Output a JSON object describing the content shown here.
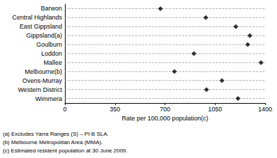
{
  "chart_data": {
    "type": "scatter",
    "orientation": "horizontal",
    "categories": [
      "Barwon",
      "Central Highlands",
      "East Gippsland",
      "Gippsland(a)",
      "Goulburn",
      "Loddon",
      "Mallee",
      "Melbourne(b)",
      "Ovens-Murray",
      "Western District",
      "Wimmera"
    ],
    "values": [
      668,
      985,
      1195,
      1293,
      1278,
      902,
      1371,
      766,
      1098,
      990,
      1210
    ],
    "color": "#000000",
    "marker": "diamond",
    "grid": true,
    "line_style": "dashed",
    "x_label": "Rate per 100,000 population(c)",
    "xlim": [
      0,
      1400
    ],
    "xticks": [
      0,
      350,
      700,
      1050,
      1400
    ],
    "annotations": [
      "(a) Excludes Yarra Ranges (S) – Pt B SLA.",
      "(b) Melbourne Metropolitan Area (MMA).",
      "(c) Estimated resident population at 30 June 2009."
    ]
  }
}
